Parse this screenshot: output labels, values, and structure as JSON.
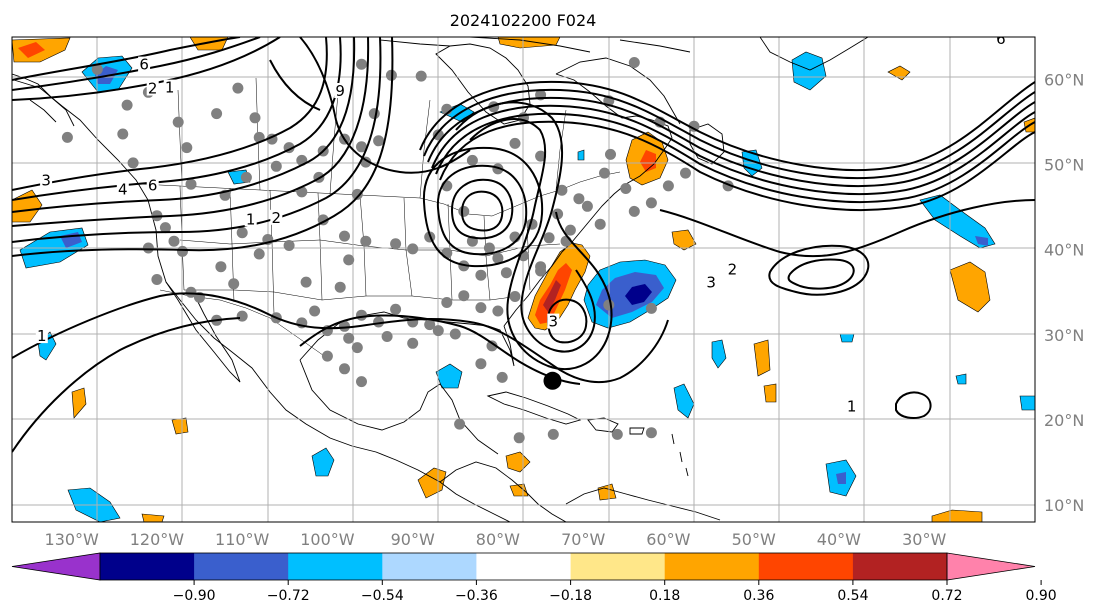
{
  "map": {
    "title": "2024102200 F024",
    "lat_ticks": [
      {
        "value": 60,
        "label": "60°N"
      },
      {
        "value": 50,
        "label": "50°N"
      },
      {
        "value": 40,
        "label": "40°N"
      },
      {
        "value": 30,
        "label": "30°N"
      },
      {
        "value": 20,
        "label": "20°N"
      },
      {
        "value": 10,
        "label": "10°N"
      }
    ],
    "lon_ticks": [
      {
        "value": -130,
        "label": "130°W"
      },
      {
        "value": -120,
        "label": "120°W"
      },
      {
        "value": -110,
        "label": "110°W"
      },
      {
        "value": -100,
        "label": "100°W"
      },
      {
        "value": -90,
        "label": "90°W"
      },
      {
        "value": -80,
        "label": "80°W"
      },
      {
        "value": -70,
        "label": "70°W"
      },
      {
        "value": -60,
        "label": "60°W"
      },
      {
        "value": -50,
        "label": "50°W"
      },
      {
        "value": -40,
        "label": "40°W"
      },
      {
        "value": -30,
        "label": "30°W"
      }
    ],
    "extent": {
      "lon_min": -137,
      "lon_max": -17,
      "lat_min": 8,
      "lat_max": 65
    },
    "storm_center": {
      "lon": -73.6,
      "lat": 24.6
    },
    "contour_labels": [
      {
        "text": "1",
        "lon": -133.5,
        "lat": 29.5
      },
      {
        "text": "1",
        "lon": -109,
        "lat": 43.2
      },
      {
        "text": "2",
        "lon": -106,
        "lat": 43.4
      },
      {
        "text": "4",
        "lon": -124,
        "lat": 46.7
      },
      {
        "text": "6",
        "lon": -120.5,
        "lat": 47.2
      },
      {
        "text": "3",
        "lon": -133,
        "lat": 47.8
      },
      {
        "text": "1",
        "lon": -118.5,
        "lat": 58.7
      },
      {
        "text": "2",
        "lon": -120.5,
        "lat": 58.6
      },
      {
        "text": "6",
        "lon": -121.5,
        "lat": 61.4
      },
      {
        "text": "9",
        "lon": -98.5,
        "lat": 58.3
      },
      {
        "text": "3",
        "lon": -73.5,
        "lat": 31.2
      },
      {
        "text": "2",
        "lon": -52.5,
        "lat": 37.3
      },
      {
        "text": "3",
        "lon": -55,
        "lat": 35.8
      },
      {
        "text": "1",
        "lon": -38.5,
        "lat": 21.2
      },
      {
        "text": "6",
        "lon": -21,
        "lat": 64.4
      }
    ],
    "station_markers": [
      [
        -130.5,
        53.2
      ],
      [
        -127,
        61.2
      ],
      [
        -124,
        53.6
      ],
      [
        -123.5,
        57
      ],
      [
        -122.8,
        50.2
      ],
      [
        -121,
        58.5
      ],
      [
        -120,
        44
      ],
      [
        -117,
        39.8
      ],
      [
        -115,
        34.4
      ],
      [
        -112.5,
        38
      ],
      [
        -117.5,
        55
      ],
      [
        -116.5,
        52
      ],
      [
        -116,
        47.7
      ],
      [
        -112,
        46.4
      ],
      [
        -113,
        56
      ],
      [
        -110.5,
        59
      ],
      [
        -108.5,
        55.5
      ],
      [
        -106.5,
        53
      ],
      [
        -104.5,
        52
      ],
      [
        -103,
        46.8
      ],
      [
        -106,
        49.8
      ],
      [
        -108,
        53.2
      ],
      [
        -109.5,
        48.5
      ],
      [
        -110,
        42
      ],
      [
        -107,
        41.2
      ],
      [
        -104.5,
        40.5
      ],
      [
        -102.5,
        36.2
      ],
      [
        -101.5,
        32.8
      ],
      [
        -98.5,
        35.6
      ],
      [
        -97.5,
        38.8
      ],
      [
        -98,
        41.6
      ],
      [
        -100.5,
        43.5
      ],
      [
        -101,
        48.5
      ],
      [
        -103,
        50.5
      ],
      [
        -100.5,
        51.6
      ],
      [
        -98,
        53
      ],
      [
        -96,
        52.1
      ],
      [
        -95.5,
        50.3
      ],
      [
        -94,
        52.8
      ],
      [
        -96.5,
        46.5
      ],
      [
        -95.5,
        41
      ],
      [
        -92,
        40.7
      ],
      [
        -90,
        40.1
      ],
      [
        -88,
        41.5
      ],
      [
        -86,
        39.6
      ],
      [
        -84,
        38.1
      ],
      [
        -83,
        41
      ],
      [
        -81,
        40.2
      ],
      [
        -79,
        37.3
      ],
      [
        -77,
        39.3
      ],
      [
        -75,
        37.5
      ],
      [
        -74,
        41.4
      ],
      [
        -71.5,
        42.3
      ],
      [
        -69.5,
        45.1
      ],
      [
        -72.5,
        47
      ],
      [
        -75,
        51
      ],
      [
        -78,
        52.5
      ],
      [
        -80.5,
        56.8
      ],
      [
        -86,
        56.5
      ],
      [
        -87,
        53.5
      ],
      [
        -83,
        50.5
      ],
      [
        -80,
        49.5
      ],
      [
        -84,
        44.5
      ],
      [
        -86,
        47.5
      ],
      [
        -92.5,
        60.5
      ],
      [
        -96,
        61.8
      ],
      [
        -94.5,
        56
      ],
      [
        -89,
        60.4
      ],
      [
        -77,
        55.5
      ],
      [
        -75,
        58.2
      ],
      [
        -67,
        57.5
      ],
      [
        -64,
        62
      ],
      [
        -61,
        55
      ],
      [
        -57,
        54.5
      ],
      [
        -53,
        47.5
      ],
      [
        -58,
        49
      ],
      [
        -60,
        47.5
      ],
      [
        -62,
        45.5
      ],
      [
        -64,
        44.5
      ],
      [
        -65,
        47.2
      ],
      [
        -68,
        43
      ],
      [
        -66.8,
        51.2
      ],
      [
        -67.5,
        49
      ],
      [
        -70.5,
        46
      ],
      [
        -73,
        44.2
      ],
      [
        -76,
        43
      ],
      [
        -78,
        41.5
      ],
      [
        -80,
        39
      ],
      [
        -82,
        37
      ],
      [
        -84,
        34.6
      ],
      [
        -86,
        33.8
      ],
      [
        -88,
        31.2
      ],
      [
        -90,
        31.5
      ],
      [
        -92,
        33
      ],
      [
        -94,
        31.5
      ],
      [
        -96,
        32.3
      ],
      [
        -98,
        31
      ],
      [
        -100,
        30.5
      ],
      [
        -103,
        31.4
      ],
      [
        -106,
        32
      ],
      [
        -110,
        32.2
      ],
      [
        -113,
        31.7
      ],
      [
        -116,
        35
      ],
      [
        -118,
        41
      ],
      [
        -120,
        36.5
      ],
      [
        -121,
        40.2
      ],
      [
        -119,
        42.6
      ],
      [
        -111,
        36
      ],
      [
        -108,
        39.5
      ],
      [
        -100,
        27.5
      ],
      [
        -96.5,
        28.5
      ],
      [
        -93,
        29.8
      ],
      [
        -90,
        29
      ],
      [
        -87,
        30.5
      ],
      [
        -85,
        30.1
      ],
      [
        -82,
        33.2
      ],
      [
        -80,
        32.8
      ],
      [
        -78,
        34.5
      ],
      [
        -75,
        38
      ],
      [
        -72,
        41
      ],
      [
        -67,
        33.5
      ],
      [
        -62,
        33.1
      ],
      [
        -79.5,
        25
      ],
      [
        -82,
        26.6
      ],
      [
        -80.7,
        28.7
      ],
      [
        -84.5,
        19.5
      ],
      [
        -77.5,
        17.9
      ],
      [
        -73.5,
        18.3
      ],
      [
        -66,
        18.3
      ],
      [
        -62,
        18.5
      ],
      [
        -97.5,
        29.6
      ],
      [
        -96,
        24.5
      ],
      [
        -98,
        26
      ]
    ],
    "contour_levels": [
      "1",
      "2",
      "3",
      "4",
      "6",
      "9"
    ]
  },
  "colorbar": {
    "ticks": [
      "−0.90",
      "−0.72",
      "−0.54",
      "−0.36",
      "−0.18",
      "0.18",
      "0.36",
      "0.54",
      "0.72",
      "0.90"
    ],
    "colors": [
      "#9932CC",
      "#00008B",
      "#3A5FCD",
      "#00BFFF",
      "#ADD8FF",
      "#FFFFFF",
      "#FFE789",
      "#FFA500",
      "#FF4500",
      "#B22222",
      "#FF82AB"
    ]
  }
}
